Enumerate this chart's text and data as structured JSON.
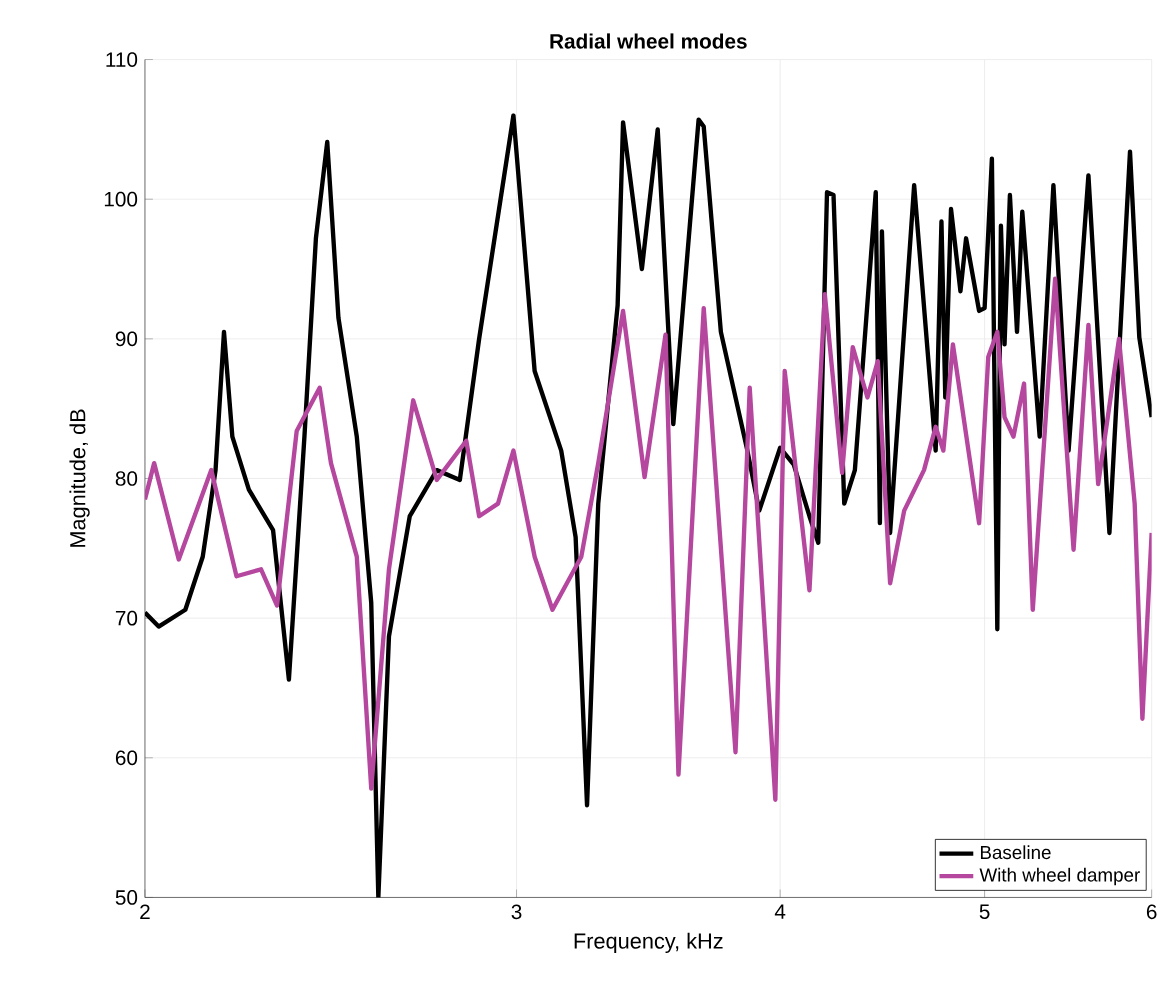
{
  "chart_data": {
    "type": "line",
    "title": "Radial wheel modes",
    "xlabel": "Frequency, kHz",
    "ylabel": "Magnitude, dB",
    "log": "x",
    "xlim": [
      2,
      6
    ],
    "ylim": [
      50,
      110
    ],
    "xticks": [
      2,
      3,
      4,
      5,
      6
    ],
    "yticks": [
      50,
      60,
      70,
      80,
      90,
      100,
      110
    ],
    "grid": true,
    "legend": "bottom right",
    "marker": "none",
    "line_style": "solid",
    "series": [
      {
        "name": "Baseline",
        "color": "#000000",
        "x": [
          2.0,
          2.03,
          2.09,
          2.13,
          2.16,
          2.18,
          2.2,
          2.24,
          2.3,
          2.34,
          2.38,
          2.41,
          2.44,
          2.47,
          2.52,
          2.56,
          2.58,
          2.61,
          2.67,
          2.75,
          2.82,
          2.88,
          2.99,
          3.06,
          3.15,
          3.2,
          3.24,
          3.28,
          3.35,
          3.37,
          3.44,
          3.5,
          3.56,
          3.66,
          3.68,
          3.75,
          3.86,
          3.91,
          4.0,
          4.06,
          4.13,
          4.17,
          4.21,
          4.24,
          4.29,
          4.34,
          4.44,
          4.46,
          4.47,
          4.51,
          4.63,
          4.74,
          4.77,
          4.79,
          4.82,
          4.87,
          4.9,
          4.97,
          5.0,
          5.04,
          5.07,
          5.09,
          5.11,
          5.14,
          5.18,
          5.21,
          5.31,
          5.39,
          5.48,
          5.6,
          5.73,
          5.86,
          5.92,
          6.0
        ],
        "values": [
          70.4,
          69.4,
          70.6,
          74.4,
          80.6,
          90.5,
          83,
          79.2,
          76.3,
          65.6,
          83,
          97.2,
          104.1,
          91.5,
          83,
          71.1,
          50,
          68.7,
          77.3,
          80.6,
          79.9,
          90,
          106,
          87.7,
          82,
          75.8,
          56.6,
          78.2,
          92.4,
          105.5,
          95,
          105,
          83.9,
          105.7,
          105.2,
          90.5,
          82,
          77.7,
          82.2,
          81,
          77.3,
          75.4,
          100.5,
          100.3,
          78.2,
          80.6,
          100.5,
          76.8,
          97.7,
          76.1,
          101,
          82,
          98.4,
          85.8,
          99.3,
          93.4,
          97.2,
          92,
          92.2,
          102.9,
          69.2,
          98.1,
          89.6,
          100.3,
          90.5,
          99.1,
          83,
          101,
          82,
          101.7,
          76.1,
          103.4,
          90.1,
          84.4
        ]
      },
      {
        "name": "With wheel damper",
        "color": "#b5479f",
        "x": [
          2.0,
          2.02,
          2.075,
          2.15,
          2.21,
          2.27,
          2.31,
          2.36,
          2.42,
          2.45,
          2.52,
          2.56,
          2.61,
          2.68,
          2.75,
          2.84,
          2.88,
          2.94,
          2.99,
          3.06,
          3.12,
          3.22,
          3.28,
          3.37,
          3.45,
          3.53,
          3.58,
          3.68,
          3.81,
          3.87,
          3.98,
          4.02,
          4.13,
          4.2,
          4.28,
          4.33,
          4.4,
          4.45,
          4.51,
          4.58,
          4.68,
          4.74,
          4.78,
          4.83,
          4.97,
          5.02,
          5.07,
          5.11,
          5.16,
          5.22,
          5.27,
          5.4,
          5.51,
          5.6,
          5.66,
          5.79,
          5.89,
          5.94,
          6.0
        ],
        "values": [
          78.5,
          81.1,
          74.2,
          80.6,
          73,
          73.5,
          70.9,
          83.4,
          86.5,
          81.1,
          74.4,
          57.8,
          73.5,
          85.6,
          79.9,
          82.7,
          77.3,
          78.2,
          82,
          74.4,
          70.6,
          74.4,
          81.1,
          92,
          80.1,
          90.3,
          58.8,
          92.2,
          60.4,
          86.5,
          57,
          87.7,
          72,
          93.2,
          80.4,
          89.4,
          85.8,
          88.4,
          72.5,
          77.7,
          80.6,
          83.7,
          82,
          89.6,
          76.8,
          88.7,
          90.5,
          84.4,
          83,
          86.8,
          70.6,
          94.3,
          74.9,
          91,
          79.6,
          90,
          78.2,
          62.8,
          76.1
        ]
      }
    ]
  }
}
